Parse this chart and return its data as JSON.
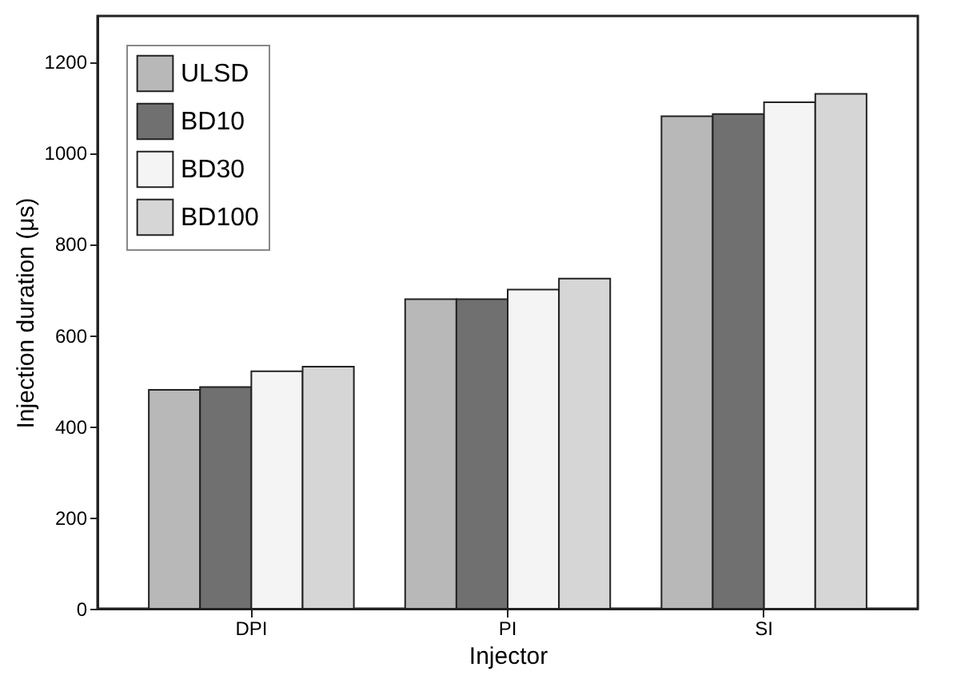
{
  "chart_data": {
    "type": "bar",
    "xlabel": "Injector",
    "ylabel": "Injection duration (μs)",
    "categories": [
      "DPI",
      "PI",
      "SI"
    ],
    "series": [
      {
        "name": "ULSD",
        "color": "#b8b8b8",
        "values": [
          480,
          679,
          1080
        ]
      },
      {
        "name": "BD10",
        "color": "#707070",
        "values": [
          486,
          679,
          1085
        ]
      },
      {
        "name": "BD30",
        "color": "#f4f4f4",
        "values": [
          521,
          700,
          1111
        ]
      },
      {
        "name": "BD100",
        "color": "#d6d6d6",
        "values": [
          531,
          724,
          1129
        ]
      }
    ],
    "ylim": [
      0,
      1300
    ],
    "yticks": [
      0,
      200,
      400,
      600,
      800,
      1000,
      1200
    ],
    "grid": false,
    "legend": "top left"
  }
}
